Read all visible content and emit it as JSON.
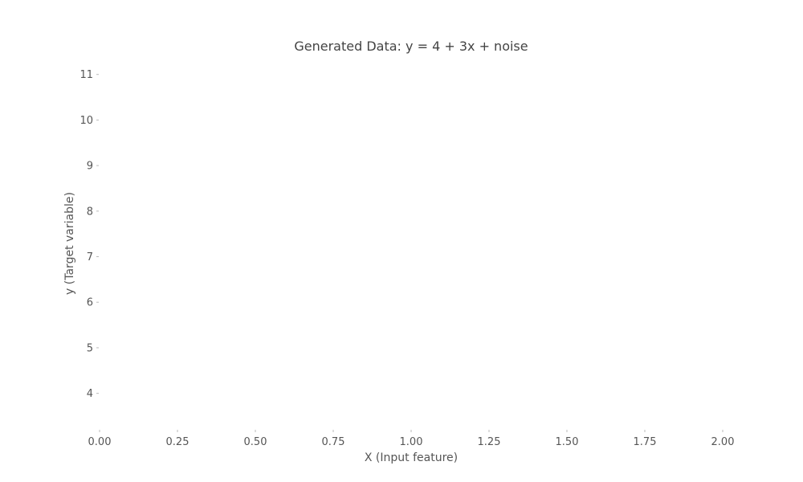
{
  "chart_data": {
    "type": "scatter",
    "title": "Generated Data: y = 4 + 3x + noise",
    "xlabel": "X (Input feature)",
    "ylabel": "y (Target variable)",
    "xlim": [
      0.0,
      2.0
    ],
    "ylim": [
      3.2,
      11.4
    ],
    "x_ticks": [
      "0.00",
      "0.25",
      "0.50",
      "0.75",
      "1.00",
      "1.25",
      "1.50",
      "1.75",
      "2.00"
    ],
    "y_ticks": [
      "4",
      "5",
      "6",
      "7",
      "8",
      "9",
      "10",
      "11"
    ],
    "grid": false,
    "series": [],
    "colors": {
      "text": "#555555",
      "title": "#444444",
      "tick_mark": "#bbbbbb"
    }
  }
}
